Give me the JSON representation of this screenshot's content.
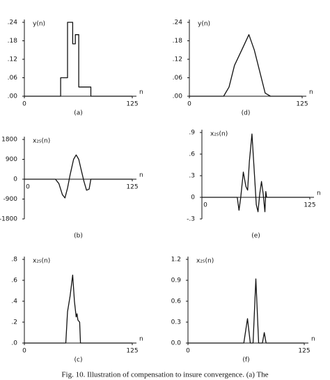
{
  "chart_data": [
    {
      "type": "line",
      "ylabel": "y(n)",
      "xlabel": "n",
      "label": "(a)",
      "x": [
        0,
        42,
        42,
        50,
        50,
        56,
        56,
        59,
        59,
        63,
        63,
        77,
        77,
        125
      ],
      "values": [
        0,
        0,
        0.06,
        0.06,
        0.24,
        0.24,
        0.17,
        0.17,
        0.2,
        0.2,
        0.03,
        0.03,
        0,
        0
      ],
      "xlim": [
        0,
        125
      ],
      "xticks": [
        0,
        125
      ],
      "ylim": [
        0,
        0.24
      ],
      "yticks": [
        {
          "value": 0,
          "label": ".00"
        },
        {
          "value": 0.06,
          "label": ".06"
        },
        {
          "value": 0.12,
          "label": ".12"
        },
        {
          "value": 0.18,
          "label": ".18"
        },
        {
          "value": 0.24,
          "label": ".24"
        }
      ],
      "color": "#111111"
    },
    {
      "type": "line",
      "ylabel": "y(n)",
      "xlabel": "n",
      "label": "(d)",
      "x": [
        0,
        38,
        44,
        50,
        58,
        66,
        72,
        78,
        84,
        90,
        125
      ],
      "values": [
        0,
        0,
        0.03,
        0.1,
        0.15,
        0.2,
        0.15,
        0.08,
        0.01,
        0,
        0
      ],
      "xlim": [
        0,
        125
      ],
      "xticks": [
        0,
        125
      ],
      "ylim": [
        0,
        0.24
      ],
      "yticks": [
        {
          "value": 0,
          "label": ".00"
        },
        {
          "value": 0.06,
          "label": ".06"
        },
        {
          "value": 0.12,
          "label": ".12"
        },
        {
          "value": 0.18,
          "label": ".18"
        },
        {
          "value": 0.24,
          "label": ".24"
        }
      ],
      "color": "#111111"
    },
    {
      "type": "line",
      "ylabel": "x₂₅(n)",
      "xlabel": "n",
      "label": "(b)",
      "x": [
        0,
        36,
        40,
        44,
        47,
        50,
        53,
        57,
        60,
        63,
        66,
        69,
        72,
        75,
        77,
        125
      ],
      "values": [
        0,
        0,
        -200,
        -700,
        -850,
        -400,
        200,
        900,
        1100,
        900,
        400,
        -100,
        -500,
        -450,
        0,
        0
      ],
      "xlim": [
        0,
        125
      ],
      "xticks": [
        0,
        125
      ],
      "ylim": [
        -1800,
        1800
      ],
      "yticks": [
        -1800,
        -900,
        0,
        900,
        1800
      ],
      "color": "#111111"
    },
    {
      "type": "line",
      "ylabel": "x₂₅(n)",
      "xlabel": "n",
      "label": "(e)",
      "x": [
        0,
        41,
        43,
        45,
        48,
        51,
        53,
        55,
        58,
        61,
        63,
        65,
        67,
        69,
        71,
        73,
        74,
        75,
        125
      ],
      "values": [
        0,
        0,
        -0.18,
        0,
        0.35,
        0.15,
        0.1,
        0.5,
        0.88,
        0.3,
        -0.1,
        -0.2,
        0.05,
        0.22,
        0.05,
        -0.2,
        0.08,
        0,
        0
      ],
      "xlim": [
        0,
        125
      ],
      "xticks": [
        0,
        125
      ],
      "ylim": [
        -0.3,
        0.9
      ],
      "yticks": [
        {
          "value": -0.3,
          "label": "-.3"
        },
        0,
        {
          "value": 0.3,
          "label": ".3"
        },
        {
          "value": 0.6,
          "label": ".6"
        },
        {
          "value": 0.9,
          "label": ".9"
        }
      ],
      "color": "#111111"
    },
    {
      "type": "line",
      "ylabel": "x₂₅(n)",
      "xlabel": "n",
      "label": "(c)",
      "x": [
        0,
        48,
        50,
        53,
        56,
        58,
        60,
        61,
        62,
        64,
        65,
        125
      ],
      "values": [
        0,
        0,
        0.3,
        0.45,
        0.65,
        0.4,
        0.25,
        0.28,
        0.22,
        0.2,
        0,
        0
      ],
      "xlim": [
        0,
        125
      ],
      "xticks": [
        0,
        125
      ],
      "ylim": [
        0,
        0.8
      ],
      "yticks": [
        {
          "value": 0,
          "label": ".0"
        },
        {
          "value": 0.2,
          "label": ".2"
        },
        {
          "value": 0.4,
          "label": ".4"
        },
        {
          "value": 0.6,
          "label": ".6"
        },
        {
          "value": 0.8,
          "label": ".8"
        }
      ],
      "color": "#111111"
    },
    {
      "type": "line",
      "ylabel": "x₂₅(n)",
      "xlabel": "n",
      "label": "(f)",
      "x": [
        0,
        60,
        64,
        67,
        70,
        73,
        76,
        80,
        82,
        84,
        125
      ],
      "values": [
        0,
        0,
        0.35,
        0,
        0,
        0.92,
        0,
        0,
        0.15,
        0,
        0
      ],
      "xlim": [
        0,
        125
      ],
      "xticks": [
        0,
        125
      ],
      "ylim": [
        0,
        1.2
      ],
      "yticks": [
        {
          "value": 0,
          "label": "0.0"
        },
        0.3,
        0.6,
        0.9,
        1.2
      ],
      "color": "#111111"
    }
  ],
  "caption": "Fig. 10.  Illustration of compensation to insure convergence.  (a) The"
}
